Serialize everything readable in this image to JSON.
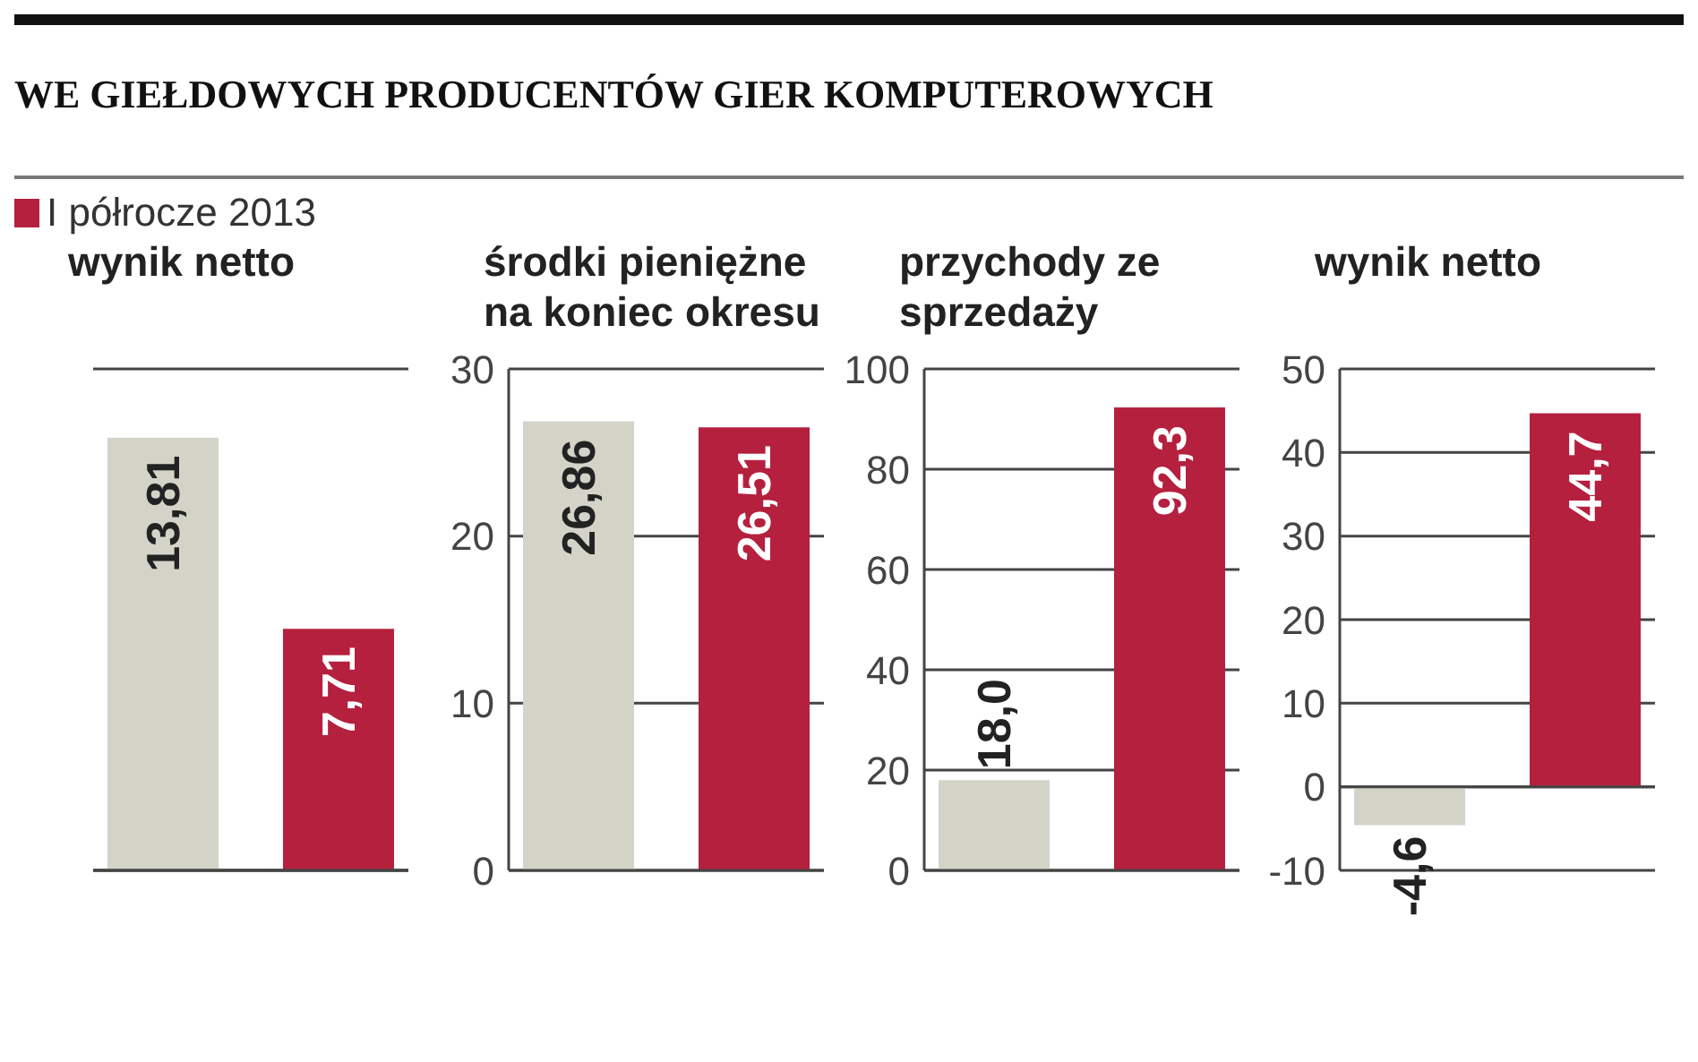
{
  "chart_data": [
    {
      "type": "bar",
      "title": "WE GIEŁDOWYCH PRODUCENTÓW GIER KOMPUTEROWYCH",
      "subtitle": "wynik netto",
      "legend": "top left",
      "categories": [
        null
      ],
      "tick_labels": false,
      "grid": "y",
      "series": [
        {
          "color": "#d3d3c8",
          "values": [
            13.81
          ],
          "value_labels": [
            "13,81"
          ]
        },
        {
          "name": "I półrocze 2013",
          "color": "#b5203f",
          "values": [
            7.71
          ],
          "value_labels": [
            "7,71"
          ]
        }
      ]
    },
    {
      "type": "bar",
      "subtitle": "środki pieniężne na koniec okresu",
      "categories": [
        null
      ],
      "ylim": [
        0,
        30
      ],
      "yticks": [
        0,
        10,
        20,
        30
      ],
      "tick_labels": "y",
      "grid": "y",
      "series": [
        {
          "color": "#d3d3c8",
          "values": [
            26.86
          ],
          "value_labels": [
            "26,86"
          ]
        },
        {
          "color": "#b5203f",
          "values": [
            26.51
          ],
          "value_labels": [
            "26,51"
          ]
        }
      ]
    },
    {
      "type": "bar",
      "subtitle": "przychody ze sprzedaży",
      "categories": [
        null
      ],
      "ylim": [
        0,
        100
      ],
      "yticks": [
        0,
        20,
        40,
        60,
        80,
        100
      ],
      "tick_labels": "y",
      "grid": "y",
      "series": [
        {
          "color": "#d3d3c8",
          "values": [
            18.0
          ],
          "value_labels": [
            "18,0"
          ]
        },
        {
          "color": "#b5203f",
          "values": [
            92.3
          ],
          "value_labels": [
            "92,3"
          ]
        }
      ]
    },
    {
      "type": "bar",
      "subtitle": "wynik netto",
      "categories": [
        null
      ],
      "ylim": [
        -10,
        50
      ],
      "yticks": [
        -10,
        0,
        10,
        20,
        30,
        40,
        50
      ],
      "tick_labels": "y",
      "grid": "y",
      "series": [
        {
          "color": "#d3d3c8",
          "values": [
            -4.6
          ],
          "value_labels": [
            "-4,6"
          ]
        },
        {
          "color": "#b5203f",
          "values": [
            44.7
          ],
          "value_labels": [
            "44,7"
          ]
        }
      ]
    }
  ]
}
